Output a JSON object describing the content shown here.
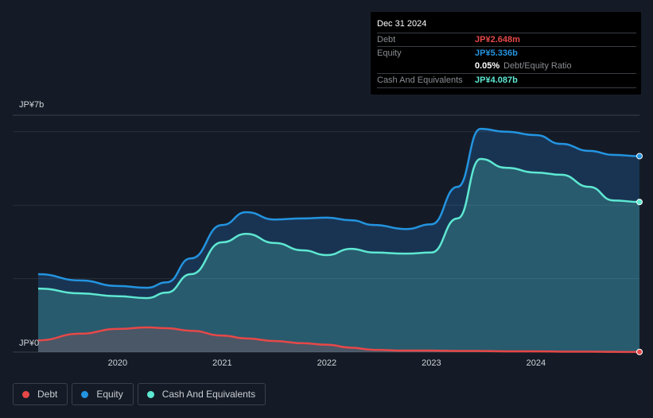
{
  "tooltip": {
    "date": "Dec 31 2024",
    "rows": [
      {
        "label": "Debt",
        "value": "JP¥2.648m",
        "color": "#e64848"
      },
      {
        "label": "Equity",
        "value": "JP¥5.336b",
        "color": "#2394e0"
      },
      {
        "label": "",
        "value": "0.05%",
        "suffix": "Debt/Equity Ratio",
        "color": "#ffffff"
      },
      {
        "label": "Cash And Equivalents",
        "value": "JP¥4.087b",
        "color": "#5ee8d2"
      }
    ]
  },
  "legend": [
    {
      "label": "Debt",
      "color": "#e64848"
    },
    {
      "label": "Equity",
      "color": "#2394e0"
    },
    {
      "label": "Cash And Equivalents",
      "color": "#5ee8d2"
    }
  ],
  "chart_data": {
    "type": "area",
    "title": "",
    "xlabel": "",
    "ylabel": "",
    "y_top_label": "JP¥7b",
    "y_bottom_label": "JP¥0",
    "ylim": [
      0,
      6.45
    ],
    "xlim": [
      2019.24,
      2024.99
    ],
    "x_ticks": [
      "2020",
      "2021",
      "2022",
      "2023",
      "2024"
    ],
    "x": [
      2019.24,
      2019.64,
      2020.0,
      2020.28,
      2020.47,
      2020.7,
      2021.0,
      2021.23,
      2021.5,
      2021.77,
      2022.0,
      2022.23,
      2022.45,
      2022.76,
      2023.0,
      2023.25,
      2023.47,
      2023.71,
      2024.0,
      2024.24,
      2024.51,
      2024.74,
      2024.99
    ],
    "series": [
      {
        "name": "Equity",
        "color": "#2394e0",
        "values": [
          2.12,
          1.95,
          1.8,
          1.75,
          1.9,
          2.55,
          3.46,
          3.81,
          3.61,
          3.64,
          3.66,
          3.59,
          3.46,
          3.35,
          3.48,
          4.5,
          6.08,
          6.0,
          5.91,
          5.67,
          5.48,
          5.37,
          5.336
        ]
      },
      {
        "name": "Cash And Equivalents",
        "color": "#5ee8d2",
        "values": [
          1.73,
          1.6,
          1.52,
          1.47,
          1.62,
          2.12,
          2.99,
          3.22,
          2.97,
          2.77,
          2.64,
          2.81,
          2.71,
          2.68,
          2.71,
          3.64,
          5.26,
          5.02,
          4.89,
          4.83,
          4.5,
          4.13,
          4.087
        ]
      },
      {
        "name": "Debt",
        "color": "#e64848",
        "values": [
          0.32,
          0.5,
          0.63,
          0.67,
          0.65,
          0.58,
          0.45,
          0.37,
          0.3,
          0.24,
          0.2,
          0.12,
          0.06,
          0.04,
          0.04,
          0.03,
          0.03,
          0.02,
          0.02,
          0.01,
          0.01,
          0.005,
          0.0026
        ]
      }
    ]
  }
}
